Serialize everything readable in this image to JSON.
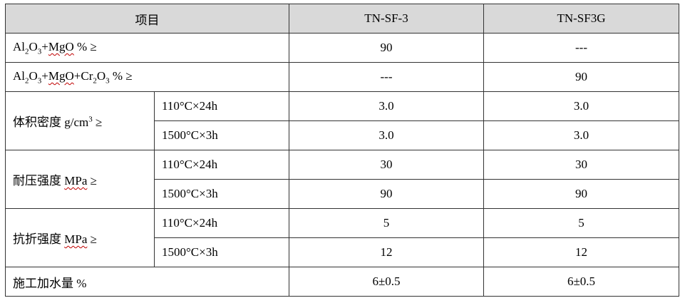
{
  "table": {
    "headers": {
      "item": "项目",
      "col1": "TN-SF-3",
      "col2": "TN-SF3G"
    },
    "rows": {
      "al_mgo": {
        "label_pre": "Al",
        "label_sub1": "2",
        "label_mid": "O",
        "label_sub2": "3",
        "label_plus": "+",
        "label_mgo": "MgO",
        "label_post": " % ≥",
        "v1": "90",
        "v2": "---"
      },
      "al_mgo_cr": {
        "label_pre": "Al",
        "label_sub1": "2",
        "label_mid": "O",
        "label_sub2": "3",
        "label_plus": "+",
        "label_mgo": "MgO",
        "label_cr_plus": "+Cr",
        "label_sub3": "2",
        "label_o": "O",
        "label_sub4": "3",
        "label_post": " % ≥",
        "v1": "---",
        "v2": "90"
      },
      "density": {
        "label": "体积密度  g/cm",
        "label_sup": "3",
        "label_post": " ≥",
        "sub1": {
          "cond": "110°C×24h",
          "v1": "3.0",
          "v2": "3.0"
        },
        "sub2": {
          "cond": "1500°C×3h",
          "v1": "3.0",
          "v2": "3.0"
        }
      },
      "compressive": {
        "label": "耐压强度  ",
        "label_unit": "MPa",
        "label_post": " ≥",
        "sub1": {
          "cond": "110°C×24h",
          "v1": "30",
          "v2": "30"
        },
        "sub2": {
          "cond": "1500°C×3h",
          "v1": "90",
          "v2": "90"
        }
      },
      "flexural": {
        "label": "抗折强度  ",
        "label_unit": "MPa",
        "label_post": " ≥",
        "sub1": {
          "cond": "110°C×24h",
          "v1": "5",
          "v2": "5"
        },
        "sub2": {
          "cond": "1500°C×3h",
          "v1": "12",
          "v2": "12"
        }
      },
      "water": {
        "label": "施工加水量  %",
        "v1": "6±0.5",
        "v2": "6±0.5"
      }
    }
  }
}
